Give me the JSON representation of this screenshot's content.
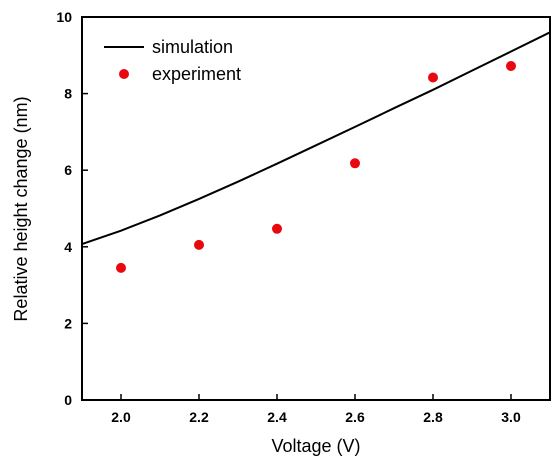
{
  "chart_data": {
    "type": "scatter",
    "title": "",
    "xlabel": "Voltage (V)",
    "ylabel": "Relative height change (nm)",
    "xlim": [
      1.9,
      3.1
    ],
    "ylim": [
      0,
      10
    ],
    "x_ticks": [
      "2.0",
      "2.2",
      "2.4",
      "2.6",
      "2.8",
      "3.0"
    ],
    "x_tick_values": [
      2.0,
      2.2,
      2.4,
      2.6,
      2.8,
      3.0
    ],
    "y_ticks": [
      "0",
      "2",
      "4",
      "6",
      "8",
      "10"
    ],
    "y_tick_values": [
      0,
      2,
      4,
      6,
      8,
      10
    ],
    "grid": false,
    "legend_position": "top-left",
    "series": [
      {
        "name": "simulation",
        "kind": "line",
        "color": "#000000",
        "x": [
          1.9,
          2.0,
          2.1,
          2.2,
          2.3,
          2.4,
          2.5,
          2.6,
          2.7,
          2.8,
          2.9,
          3.0,
          3.1
        ],
        "y": [
          4.07,
          4.42,
          4.82,
          5.25,
          5.7,
          6.17,
          6.65,
          7.13,
          7.62,
          8.1,
          8.6,
          9.1,
          9.6
        ]
      },
      {
        "name": "experiment",
        "kind": "scatter",
        "color": "#e8080d",
        "x": [
          2.0,
          2.2,
          2.4,
          2.6,
          2.8,
          3.0
        ],
        "y": [
          3.45,
          4.05,
          4.47,
          6.18,
          8.42,
          8.72
        ]
      }
    ]
  }
}
